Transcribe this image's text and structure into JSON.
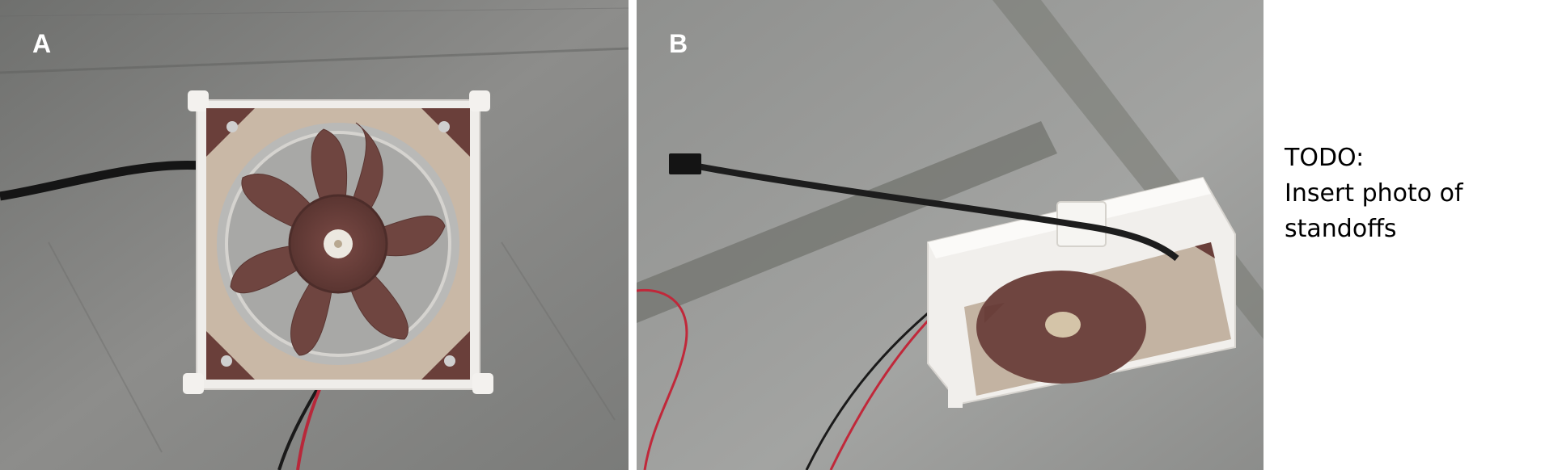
{
  "panels": [
    {
      "label": "A",
      "subject": "fan-top-view-photo"
    },
    {
      "label": "B",
      "subject": "fan-angled-view-photo"
    }
  ],
  "note": {
    "lines": [
      "TODO:",
      "Insert photo of",
      "standoffs"
    ]
  },
  "colors": {
    "floor": "#8a8a88",
    "fan_frame": "#c9b8a6",
    "fan_blade": "#6f4540",
    "corner_pad": "#6a3f3a",
    "mount": "#efedea",
    "cable": "#1a1a1a",
    "red_wire": "#c0283a"
  }
}
